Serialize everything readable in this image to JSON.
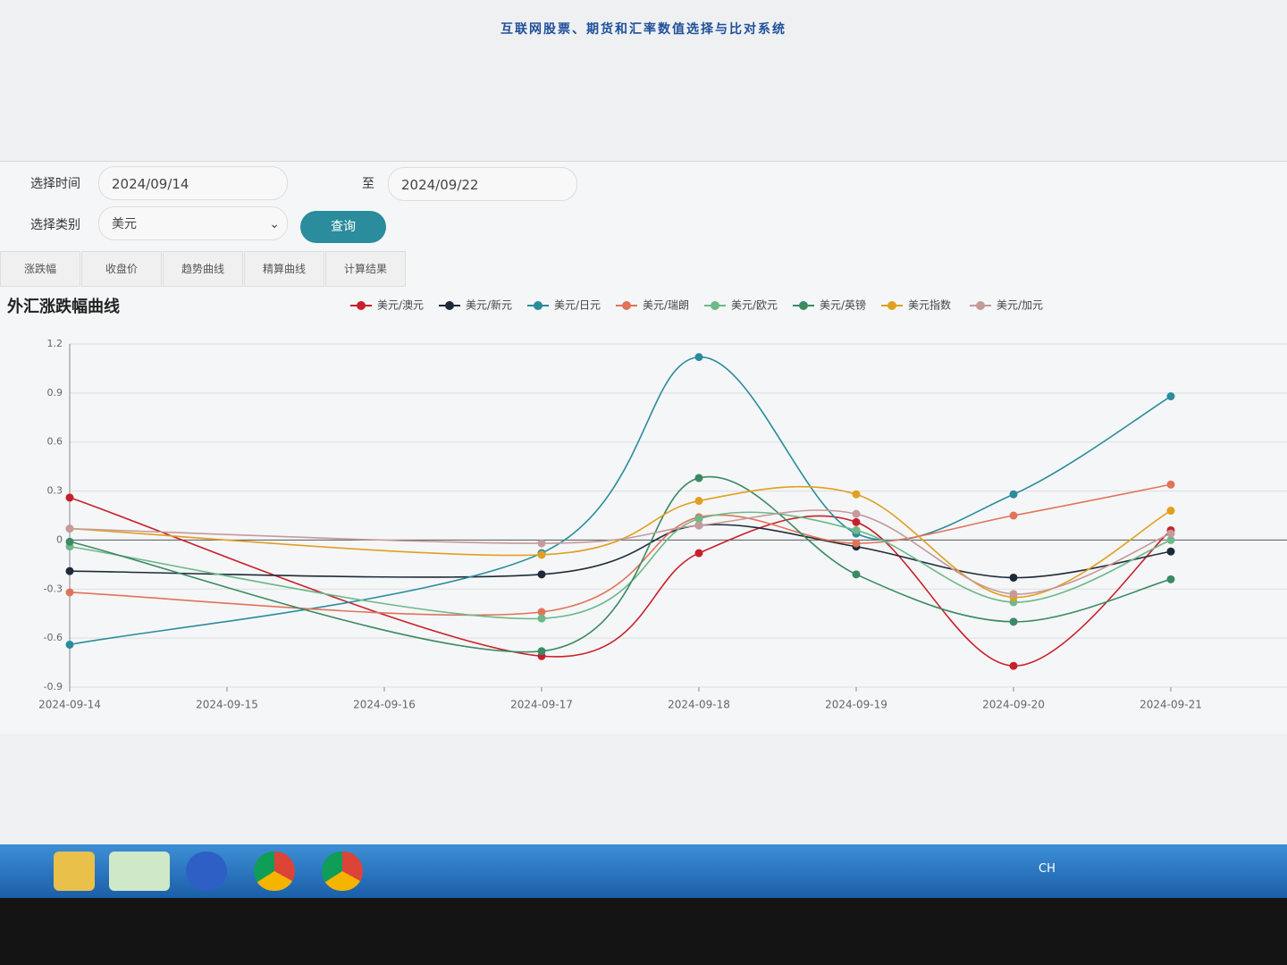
{
  "header": {
    "title": "互联网股票、期货和汇率数值选择与比对系统"
  },
  "form": {
    "time_label": "选择时间",
    "start_date": "2024/09/14",
    "to_label": "至",
    "end_date": "2024/09/22",
    "category_label": "选择类别",
    "category_value": "美元",
    "query_button": "查询"
  },
  "tabs": [
    "涨跌幅",
    "收盘价",
    "趋势曲线",
    "精算曲线",
    "计算结果"
  ],
  "chart_data": {
    "type": "line",
    "title": "外汇涨跌幅曲线",
    "categories": [
      "2024-09-14",
      "2024-09-15",
      "2024-09-16",
      "2024-09-17",
      "2024-09-18",
      "2024-09-19",
      "2024-09-20",
      "2024-09-21"
    ],
    "series": [
      {
        "name": "美元/澳元",
        "color": "#c8202a",
        "values": [
          0.26,
          null,
          null,
          -0.71,
          -0.08,
          0.11,
          -0.77,
          0.06
        ]
      },
      {
        "name": "美元/新元",
        "color": "#1e2a3a",
        "values": [
          -0.19,
          null,
          null,
          -0.21,
          0.09,
          -0.04,
          -0.23,
          -0.07
        ]
      },
      {
        "name": "美元/日元",
        "color": "#2a8c9c",
        "values": [
          -0.64,
          null,
          null,
          -0.08,
          1.12,
          0.04,
          0.28,
          0.88
        ]
      },
      {
        "name": "美元/瑞朗",
        "color": "#e0745a",
        "values": [
          -0.32,
          null,
          null,
          -0.44,
          0.14,
          -0.02,
          0.15,
          0.34
        ]
      },
      {
        "name": "美元/欧元",
        "color": "#6cb98a",
        "values": [
          -0.04,
          null,
          null,
          -0.48,
          0.13,
          0.06,
          -0.38,
          0.0
        ]
      },
      {
        "name": "美元/英镑",
        "color": "#3a8a63",
        "values": [
          -0.01,
          null,
          null,
          -0.68,
          0.38,
          -0.21,
          -0.5,
          -0.24
        ]
      },
      {
        "name": "美元指数",
        "color": "#e0a020",
        "values": [
          0.07,
          null,
          null,
          -0.09,
          0.24,
          0.28,
          -0.35,
          0.18
        ]
      },
      {
        "name": "美元/加元",
        "color": "#c49a9a",
        "values": [
          0.07,
          null,
          null,
          -0.02,
          0.09,
          0.16,
          -0.33,
          0.04
        ]
      }
    ],
    "ylim": [
      -0.9,
      1.2
    ],
    "yticks": [
      -0.9,
      -0.6,
      -0.3,
      0,
      0.3,
      0.6,
      0.9,
      1.2
    ],
    "grid": true,
    "smooth": true,
    "connect_nulls": true
  },
  "taskbar": {
    "input_lang": "CH"
  }
}
